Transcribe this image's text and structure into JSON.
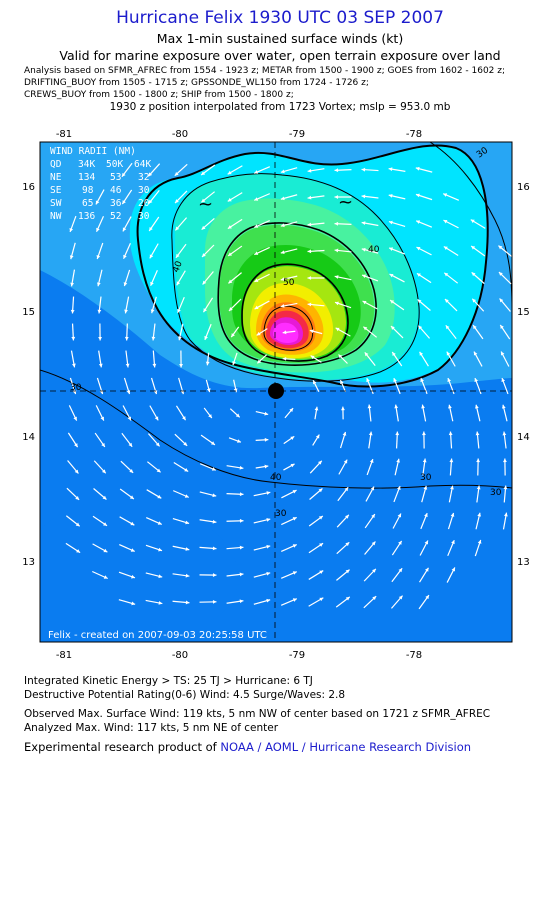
{
  "header": {
    "title": "Hurricane Felix 1930 UTC 03 SEP 2007",
    "subtitle1": "Max 1-min sustained surface winds (kt)",
    "subtitle2": "Valid for marine exposure over water, open terrain exposure over land",
    "analysis_line1": "Analysis based on   SFMR_AFREC from 1554 - 1923 z;   METAR from 1500 - 1900 z;   GOES from 1602 - 1602 z;",
    "analysis_line2": "DRIFTING_BUOY from 1505 - 1715 z;   GPSSONDE_WL150 from 1724 - 1726 z;",
    "analysis_line3": "CREWS_BUOY from 1500 - 1800 z;   SHIP from 1500 - 1800 z;",
    "position_line": "1930 z position interpolated from 1723 Vortex; mslp = 953.0 mb"
  },
  "map": {
    "x_ticks": [
      "-81",
      "-80",
      "-79",
      "-78"
    ],
    "y_ticks": [
      "16",
      "15",
      "14",
      "13"
    ],
    "contour_labels": [
      "30",
      "40",
      "50",
      "30",
      "40",
      "30",
      "30",
      "40",
      "30"
    ],
    "credit": "Felix - created on 2007-09-03 20:25:58 UTC",
    "land_symbols": [
      "~",
      "~"
    ],
    "wind_radii_table": {
      "title": "WIND RADII (NM)",
      "header": [
        "QD",
        "34K",
        "50K",
        "64K"
      ],
      "rows": [
        [
          "NE",
          "134",
          "53",
          "32"
        ],
        [
          "SE",
          "98",
          "46",
          "30"
        ],
        [
          "SW",
          "65",
          "36",
          "20"
        ],
        [
          "NW",
          "136",
          "52",
          "30"
        ]
      ]
    },
    "colors": {
      "c20": "#0a7cf0",
      "c30": "#27a6f4",
      "c40": "#00e4ff",
      "c45": "#19ecd4",
      "c50": "#48f2a0",
      "c55": "#3fe04e",
      "c60": "#16ca16",
      "c70": "#a5e610",
      "c80": "#f2ee00",
      "c90": "#ffb400",
      "c100": "#ff7a10",
      "c110": "#f42a46",
      "c115": "#e61ad6",
      "c120": "#ff2dff",
      "eye": "#000000",
      "arrow": "#ffffff"
    }
  },
  "footer": {
    "ike": "Integrated Kinetic Energy > TS: 25 TJ   > Hurricane: 6 TJ",
    "dpr": "Destructive Potential Rating(0-6)   Wind: 4.5 Surge/Waves: 2.8",
    "observed": "Observed Max. Surface Wind: 119 kts, 5 nm NW of center based on 1721 z SFMR_AFREC",
    "analyzed": "Analyzed Max. Wind: 117 kts, 5 nm NE of center",
    "product_prefix": "Experimental research product of ",
    "product_org": "NOAA / AOML / Hurricane Research Division"
  }
}
